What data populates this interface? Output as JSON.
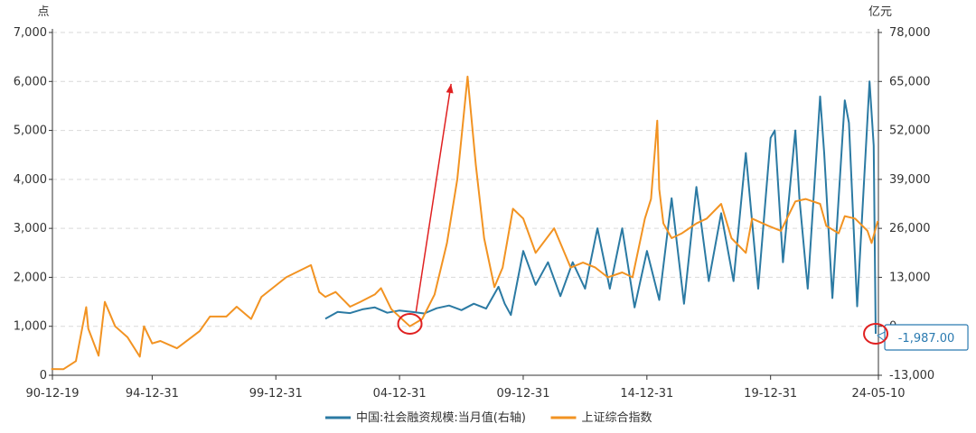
{
  "chart_data": {
    "type": "line",
    "left_unit": "点",
    "right_unit": "亿元",
    "x_ticks": [
      "90-12-19",
      "94-12-31",
      "99-12-31",
      "04-12-31",
      "09-12-31",
      "14-12-31",
      "19-12-31",
      "24-05-10"
    ],
    "y_left_ticks": [
      "0",
      "1,000",
      "2,000",
      "3,000",
      "4,000",
      "5,000",
      "6,000",
      "7,000"
    ],
    "y_right_ticks": [
      "-13,000",
      "0",
      "13,000",
      "26,000",
      "39,000",
      "52,000",
      "65,000",
      "78,000"
    ],
    "y_left_range": [
      0,
      7000
    ],
    "y_right_range": [
      -13000,
      78000
    ],
    "grid": true,
    "legend_position": "bottom",
    "series": [
      {
        "name": "中国:社会融资规模:当月值(右轴)",
        "axis": "right",
        "color": "#2b7aa3",
        "x": [
          "2002-01",
          "2002-07",
          "2003-01",
          "2003-07",
          "2004-01",
          "2004-07",
          "2005-01",
          "2005-07",
          "2006-01",
          "2006-07",
          "2007-01",
          "2007-07",
          "2008-01",
          "2008-07",
          "2009-01",
          "2009-04",
          "2009-07",
          "2010-01",
          "2010-07",
          "2011-01",
          "2011-07",
          "2012-01",
          "2012-07",
          "2013-01",
          "2013-07",
          "2014-01",
          "2014-07",
          "2015-01",
          "2015-07",
          "2016-01",
          "2016-07",
          "2017-01",
          "2017-07",
          "2018-01",
          "2018-07",
          "2019-01",
          "2019-07",
          "2020-01",
          "2020-03",
          "2020-07",
          "2021-01",
          "2021-03",
          "2021-07",
          "2022-01",
          "2022-03",
          "2022-07",
          "2023-01",
          "2023-03",
          "2023-07",
          "2024-01",
          "2024-03",
          "2024-04"
        ],
        "values": [
          2000,
          3800,
          3500,
          4500,
          5000,
          3600,
          4200,
          3800,
          3400,
          4800,
          5500,
          4300,
          6000,
          4700,
          10500,
          6000,
          3000,
          20000,
          11000,
          17000,
          8000,
          17000,
          10000,
          26000,
          10000,
          26000,
          5000,
          20000,
          7000,
          34000,
          6000,
          37000,
          12000,
          30000,
          12000,
          46000,
          10000,
          50000,
          52000,
          17000,
          52000,
          34000,
          10000,
          61000,
          46000,
          7500,
          60000,
          54000,
          5300,
          65000,
          48000,
          -1987
        ]
      },
      {
        "name": "上证综合指数",
        "axis": "left",
        "color": "#f29322",
        "x": [
          "1990-12",
          "1991-06",
          "1991-12",
          "1992-05",
          "1992-06",
          "1992-11",
          "1993-02",
          "1993-07",
          "1994-01",
          "1994-07",
          "1994-09",
          "1995-01",
          "1995-05",
          "1996-01",
          "1996-12",
          "1997-05",
          "1998-01",
          "1998-06",
          "1999-01",
          "1999-06",
          "2000-06",
          "2001-06",
          "2001-10",
          "2002-01",
          "2002-06",
          "2003-01",
          "2003-06",
          "2004-01",
          "2004-04",
          "2004-09",
          "2005-06",
          "2005-12",
          "2006-06",
          "2006-12",
          "2007-05",
          "2007-10",
          "2008-02",
          "2008-06",
          "2008-11",
          "2009-03",
          "2009-08",
          "2010-01",
          "2010-07",
          "2011-04",
          "2011-12",
          "2012-06",
          "2012-12",
          "2013-06",
          "2014-01",
          "2014-06",
          "2014-12",
          "2015-03",
          "2015-06",
          "2015-07",
          "2015-09",
          "2016-01",
          "2016-06",
          "2017-01",
          "2017-06",
          "2018-01",
          "2018-06",
          "2019-01",
          "2019-04",
          "2019-12",
          "2020-06",
          "2021-01",
          "2021-06",
          "2022-01",
          "2022-04",
          "2022-10",
          "2023-01",
          "2023-06",
          "2023-12",
          "2024-02",
          "2024-05"
        ],
        "values": [
          127,
          125,
          290,
          1390,
          950,
          400,
          1500,
          1000,
          780,
          380,
          1000,
          650,
          700,
          550,
          900,
          1200,
          1200,
          1400,
          1150,
          1600,
          2000,
          2250,
          1700,
          1600,
          1700,
          1400,
          1500,
          1650,
          1780,
          1350,
          1000,
          1150,
          1650,
          2700,
          4000,
          6100,
          4300,
          2800,
          1800,
          2200,
          3400,
          3200,
          2500,
          3000,
          2200,
          2300,
          2200,
          2000,
          2100,
          2000,
          3200,
          3600,
          5200,
          3800,
          3100,
          2800,
          2900,
          3100,
          3200,
          3500,
          2800,
          2500,
          3200,
          3050,
          2950,
          3550,
          3600,
          3500,
          3050,
          2900,
          3250,
          3200,
          2950,
          2700,
          3150
        ]
      }
    ],
    "annotations": [
      {
        "type": "callout",
        "text": "-1,987.00",
        "x": "2024-04",
        "y": -1987,
        "axis": "right"
      },
      {
        "type": "circle",
        "x": "2024-04",
        "y": -1987,
        "axis": "right"
      },
      {
        "type": "circle",
        "x": "2005-06",
        "y": 1050,
        "axis": "left"
      },
      {
        "type": "arrow",
        "from": {
          "x": "2005-09",
          "y": 1300
        },
        "to": {
          "x": "2007-02",
          "y": 5950
        },
        "axis": "left"
      }
    ]
  }
}
